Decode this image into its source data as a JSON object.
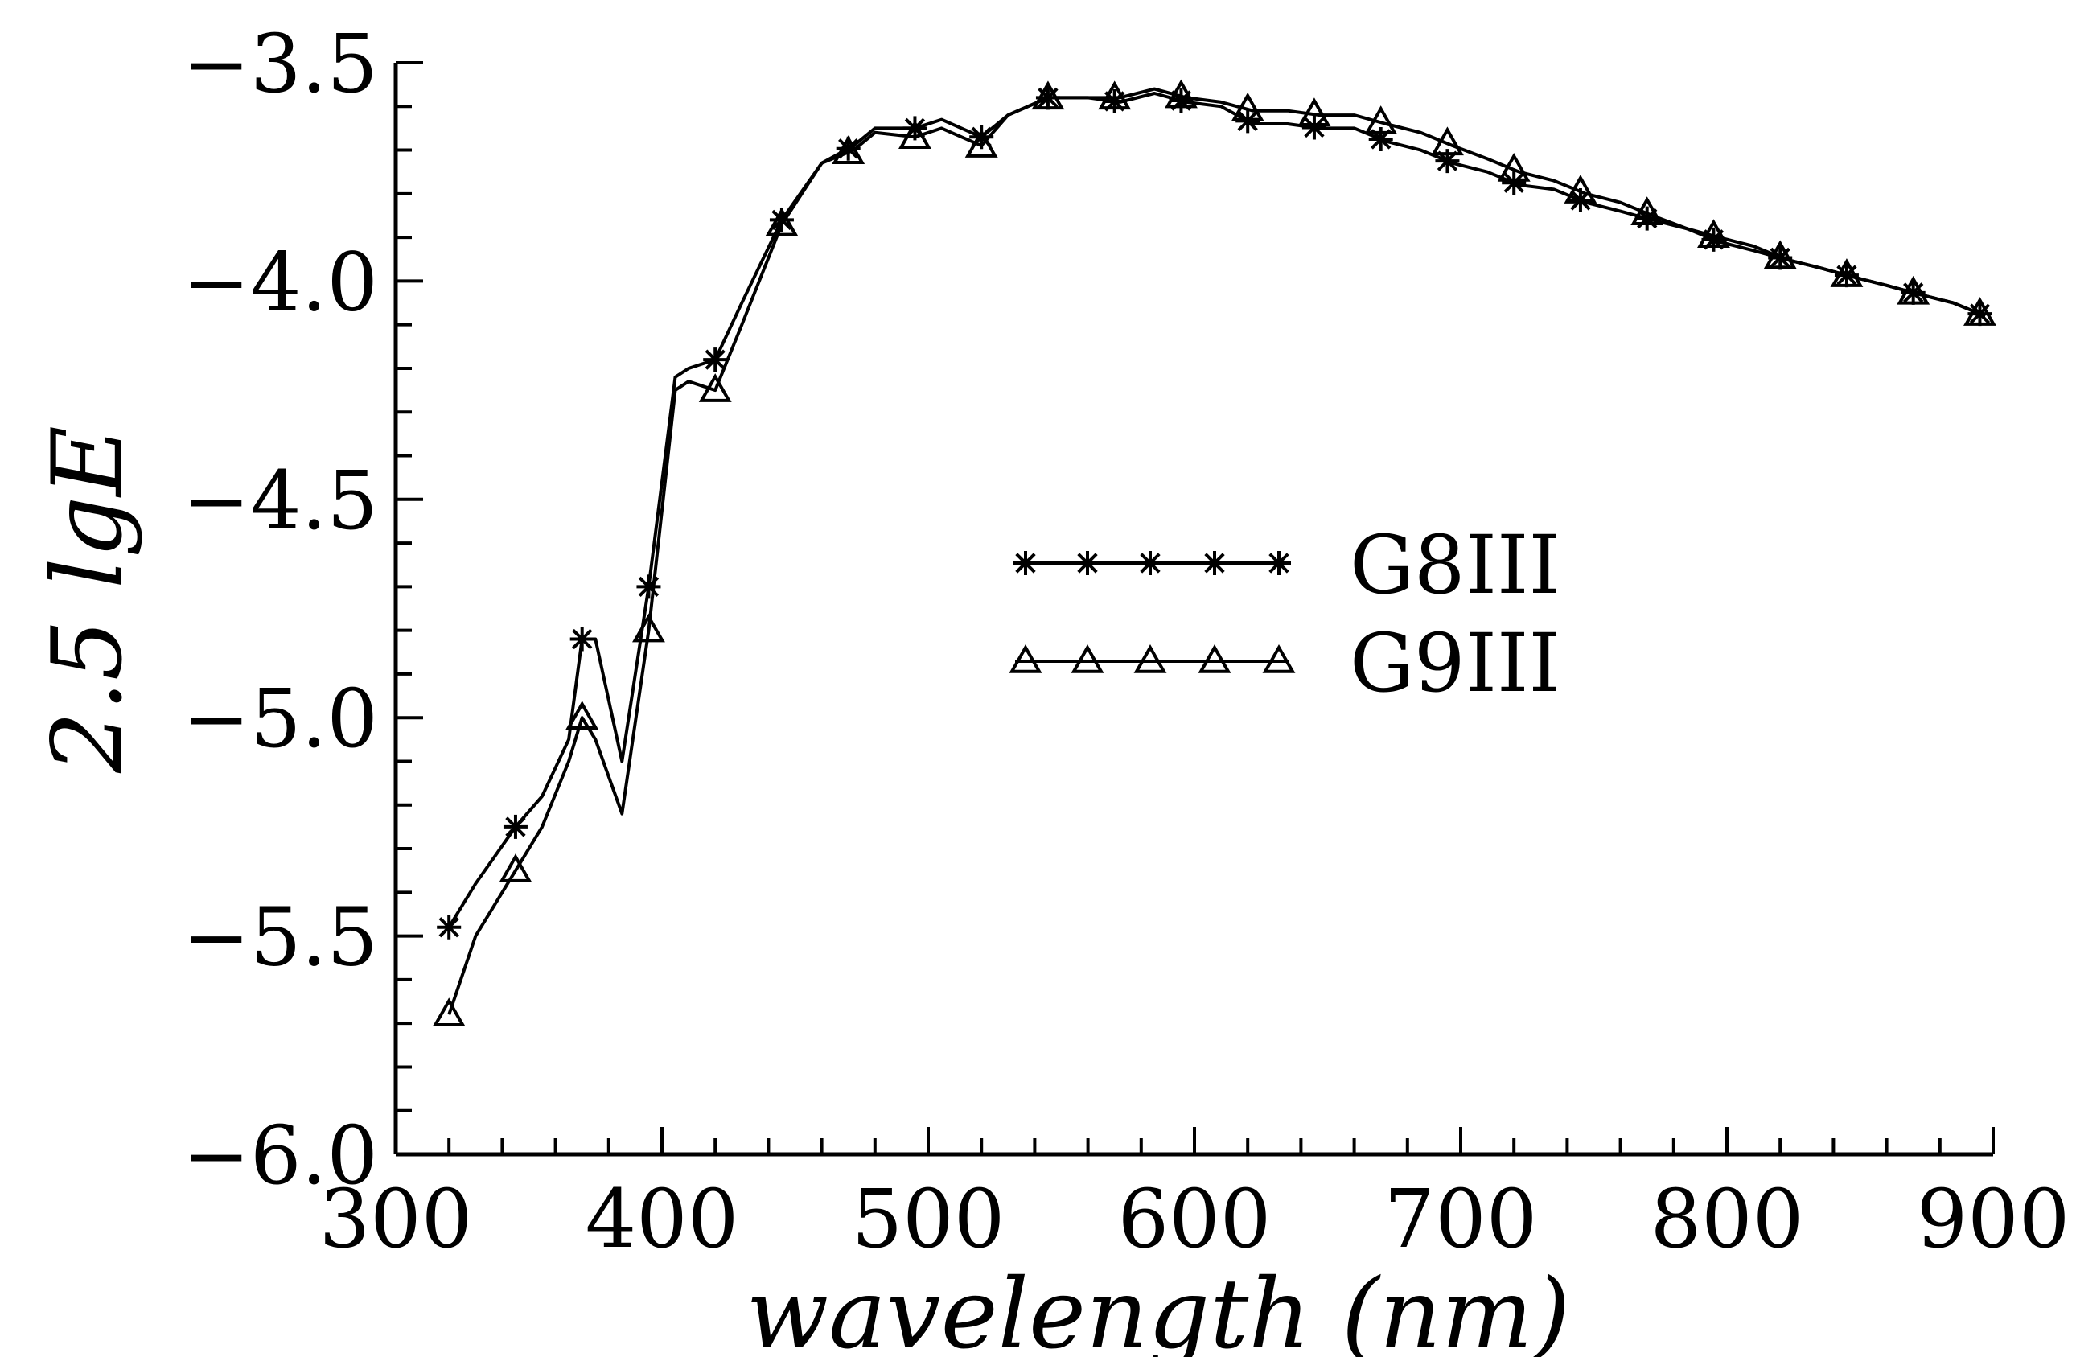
{
  "chart_data": {
    "type": "line",
    "title": "",
    "xlabel": "wavelength (nm)",
    "ylabel": "2.5 lgE",
    "xlim": [
      300,
      900
    ],
    "ylim": [
      -6.0,
      -3.5
    ],
    "x_ticks": [
      300,
      400,
      500,
      600,
      700,
      800,
      900
    ],
    "x_tick_labels": [
      "300",
      "400",
      "500",
      "600",
      "700",
      "800",
      "900"
    ],
    "x_minor_step": 20,
    "y_ticks": [
      -6.0,
      -5.5,
      -5.0,
      -4.5,
      -4.0,
      -3.5
    ],
    "y_tick_labels": [
      "−6.0",
      "−5.5",
      "−5.0",
      "−4.5",
      "−4.0",
      "−3.5"
    ],
    "y_minor_step": 0.1,
    "grid": false,
    "legend_position": "center",
    "series": [
      {
        "name": "G8III",
        "marker": "asterisk",
        "x": [
          320,
          330,
          345,
          355,
          365,
          370,
          375,
          385,
          395,
          405,
          410,
          420,
          430,
          445,
          460,
          472,
          480,
          495,
          505,
          520,
          530,
          545,
          560,
          572,
          585,
          597,
          610,
          622,
          635,
          647,
          660,
          672,
          685,
          697,
          710,
          722,
          735,
          747,
          760,
          772,
          785,
          797,
          810,
          822,
          835,
          847,
          860,
          872,
          885,
          897
        ],
        "y": [
          -5.48,
          -5.38,
          -5.25,
          -5.18,
          -5.05,
          -4.82,
          -4.82,
          -5.1,
          -4.7,
          -4.22,
          -4.2,
          -4.18,
          -4.05,
          -3.86,
          -3.73,
          -3.69,
          -3.65,
          -3.65,
          -3.63,
          -3.67,
          -3.62,
          -3.58,
          -3.58,
          -3.59,
          -3.57,
          -3.59,
          -3.6,
          -3.64,
          -3.64,
          -3.65,
          -3.65,
          -3.68,
          -3.7,
          -3.73,
          -3.75,
          -3.78,
          -3.79,
          -3.82,
          -3.84,
          -3.86,
          -3.88,
          -3.91,
          -3.93,
          -3.95,
          -3.97,
          -3.99,
          -4.01,
          -4.03,
          -4.05,
          -4.08
        ]
      },
      {
        "name": "G9III",
        "marker": "triangle",
        "x": [
          320,
          330,
          345,
          355,
          365,
          370,
          375,
          385,
          395,
          405,
          410,
          420,
          430,
          445,
          460,
          472,
          480,
          495,
          505,
          520,
          530,
          545,
          560,
          572,
          585,
          597,
          610,
          622,
          635,
          647,
          660,
          672,
          685,
          697,
          710,
          722,
          735,
          747,
          760,
          772,
          785,
          797,
          810,
          822,
          835,
          847,
          860,
          872,
          885,
          897
        ],
        "y": [
          -5.68,
          -5.5,
          -5.35,
          -5.25,
          -5.1,
          -5.0,
          -5.05,
          -5.22,
          -4.8,
          -4.25,
          -4.23,
          -4.25,
          -4.1,
          -3.87,
          -3.73,
          -3.7,
          -3.66,
          -3.67,
          -3.65,
          -3.69,
          -3.62,
          -3.58,
          -3.58,
          -3.58,
          -3.56,
          -3.58,
          -3.59,
          -3.61,
          -3.61,
          -3.62,
          -3.62,
          -3.64,
          -3.66,
          -3.69,
          -3.72,
          -3.75,
          -3.77,
          -3.8,
          -3.82,
          -3.85,
          -3.88,
          -3.9,
          -3.92,
          -3.95,
          -3.97,
          -3.99,
          -4.01,
          -4.03,
          -4.05,
          -4.08
        ]
      }
    ],
    "marker_x": {
      "G8III": [
        320,
        345,
        370,
        395,
        420,
        445,
        470,
        495,
        520,
        545,
        570,
        595,
        620,
        645,
        670,
        695,
        720,
        745,
        770,
        795,
        820,
        845,
        870,
        895
      ],
      "G9III": [
        320,
        345,
        370,
        395,
        420,
        445,
        470,
        495,
        520,
        545,
        570,
        595,
        620,
        645,
        670,
        695,
        720,
        745,
        770,
        795,
        820,
        845,
        870,
        895
      ]
    }
  }
}
